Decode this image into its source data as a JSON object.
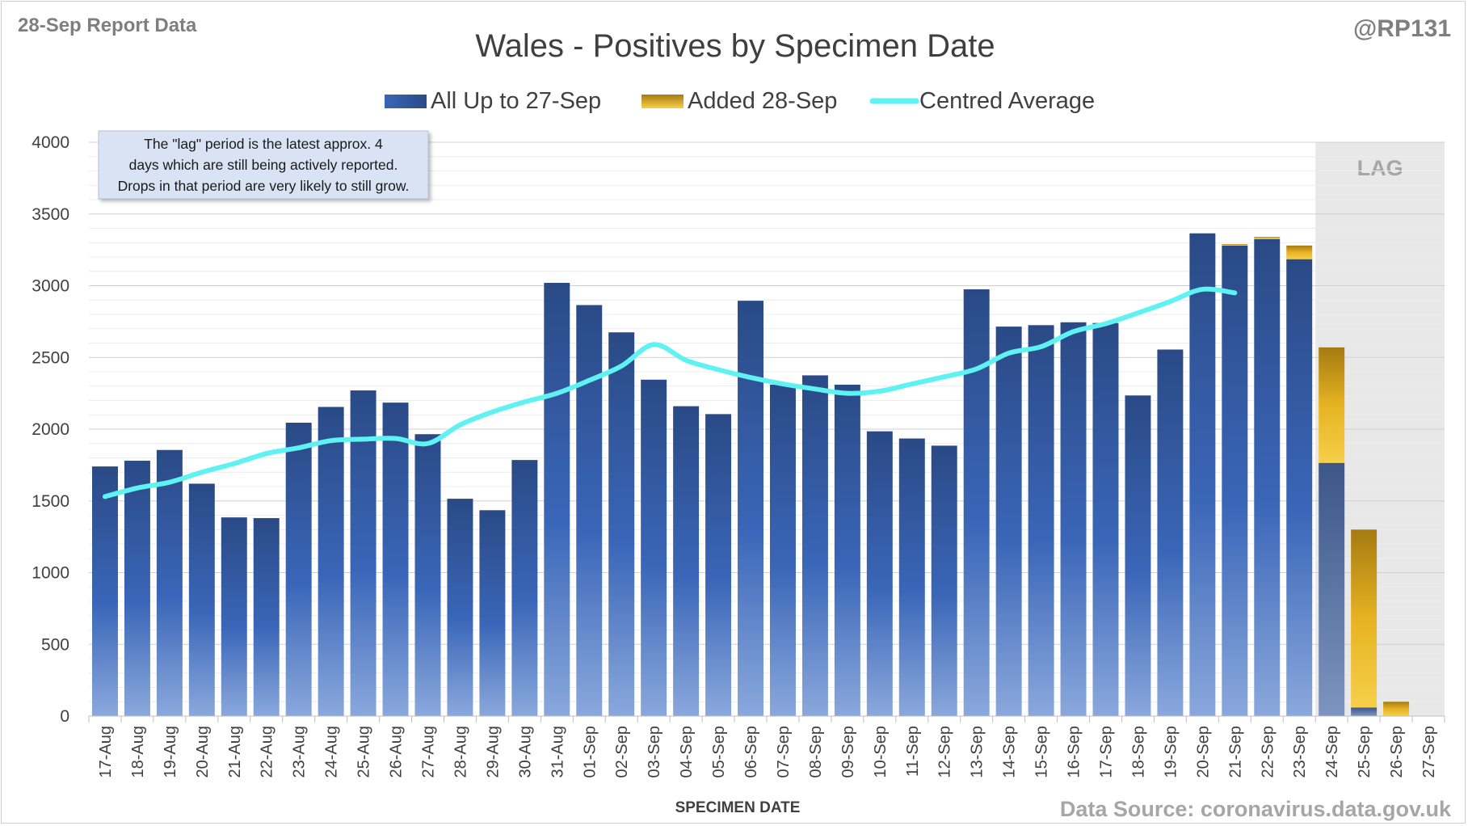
{
  "header": {
    "report_label": "28-Sep Report Data",
    "handle": "@RP131"
  },
  "chart_data": {
    "type": "bar",
    "title": "Wales - Positives by Specimen Date",
    "xlabel": "SPECIMEN DATE",
    "ylabel": "",
    "ylim": [
      0,
      4000
    ],
    "yticks": [
      0,
      500,
      1000,
      1500,
      2000,
      2500,
      3000,
      3500,
      4000
    ],
    "grid": true,
    "stacked": true,
    "legend_position": "top",
    "categories": [
      "17-Aug",
      "18-Aug",
      "19-Aug",
      "20-Aug",
      "21-Aug",
      "22-Aug",
      "23-Aug",
      "24-Aug",
      "25-Aug",
      "26-Aug",
      "27-Aug",
      "28-Aug",
      "29-Aug",
      "30-Aug",
      "31-Aug",
      "01-Sep",
      "02-Sep",
      "03-Sep",
      "04-Sep",
      "05-Sep",
      "06-Sep",
      "07-Sep",
      "08-Sep",
      "09-Sep",
      "10-Sep",
      "11-Sep",
      "12-Sep",
      "13-Sep",
      "14-Sep",
      "15-Sep",
      "16-Sep",
      "17-Sep",
      "18-Sep",
      "19-Sep",
      "20-Sep",
      "21-Sep",
      "22-Sep",
      "23-Sep",
      "24-Sep",
      "25-Sep",
      "26-Sep",
      "27-Sep"
    ],
    "series": [
      {
        "name": "All Up to 27-Sep",
        "kind": "bar",
        "color": "#2e4f8f",
        "values": [
          1740,
          1780,
          1855,
          1620,
          1385,
          1380,
          2045,
          2155,
          2270,
          2185,
          1965,
          1515,
          1435,
          1785,
          3020,
          2865,
          2675,
          2345,
          2160,
          2105,
          2895,
          2310,
          2375,
          2310,
          1985,
          1935,
          1885,
          2975,
          2715,
          2725,
          2745,
          2740,
          2235,
          2555,
          3365,
          3280,
          3325,
          3185,
          1765,
          60,
          0,
          0
        ]
      },
      {
        "name": "Added 28-Sep",
        "kind": "bar",
        "color": "#d4a017",
        "values": [
          0,
          0,
          0,
          0,
          0,
          0,
          0,
          0,
          0,
          0,
          0,
          0,
          0,
          0,
          0,
          0,
          0,
          0,
          0,
          0,
          0,
          0,
          0,
          0,
          0,
          0,
          0,
          0,
          0,
          0,
          0,
          0,
          0,
          0,
          0,
          10,
          15,
          95,
          805,
          1240,
          100,
          0
        ]
      },
      {
        "name": "Centred Average",
        "kind": "line",
        "color": "#5ef2f2",
        "values": [
          1530,
          1590,
          1630,
          1700,
          1760,
          1830,
          1870,
          1920,
          1930,
          1935,
          1900,
          2030,
          2120,
          2190,
          2250,
          2340,
          2440,
          2590,
          2480,
          2415,
          2360,
          2315,
          2280,
          2250,
          2265,
          2315,
          2365,
          2420,
          2530,
          2575,
          2680,
          2735,
          2810,
          2890,
          2975,
          2950,
          null,
          null,
          null,
          null,
          null,
          null
        ]
      }
    ],
    "lag": {
      "label": "LAG",
      "from": "24-Sep",
      "to": "27-Sep"
    },
    "annotation": "The \"lag\" period is the latest approx. 4 days which are still being actively reported.  Drops in that period are very likely to still grow.",
    "source": "Data Source: coronavirus.data.gov.uk"
  }
}
